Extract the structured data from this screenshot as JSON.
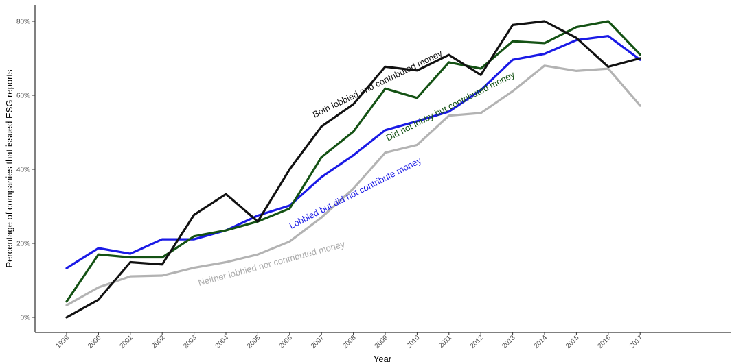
{
  "chart_data": {
    "type": "line",
    "title": "",
    "xlabel": "Year",
    "ylabel": "Percentage of companies that issued ESG reports",
    "x": [
      "1999",
      "2000",
      "2001",
      "2002",
      "2003",
      "2004",
      "2005",
      "2006",
      "2007",
      "2008",
      "2009",
      "2010",
      "2011",
      "2012",
      "2013",
      "2014",
      "2015",
      "2016",
      "2017"
    ],
    "y_ticks": [
      "0%",
      "20%",
      "40%",
      "60%",
      "80%"
    ],
    "ylim": [
      0,
      84
    ],
    "grid": false,
    "legend": "none (direct labels on lines)",
    "series": [
      {
        "name": "Both lobbied and contributed money",
        "color": "#111111",
        "values": [
          0.0,
          4.8,
          14.9,
          14.3,
          27.7,
          33.3,
          25.9,
          40.0,
          51.6,
          57.6,
          67.7,
          66.7,
          70.9,
          65.5,
          79.0,
          80.0,
          75.5,
          67.7,
          70.0
        ]
      },
      {
        "name": "Did not lobby but contributed money",
        "color": "#145214",
        "values": [
          4.3,
          17.0,
          16.2,
          16.2,
          21.9,
          23.5,
          25.9,
          29.4,
          43.3,
          50.2,
          61.8,
          59.3,
          68.9,
          67.2,
          74.6,
          74.1,
          78.4,
          80.0,
          71.0
        ]
      },
      {
        "name": "Lobbied but did not contribute money",
        "color": "#1a1ae6",
        "values": [
          13.3,
          18.7,
          17.2,
          21.1,
          21.1,
          23.5,
          27.5,
          30.2,
          37.9,
          43.8,
          50.6,
          53.0,
          55.6,
          61.4,
          69.6,
          71.2,
          74.9,
          76.0,
          69.6
        ]
      },
      {
        "name": "Neither lobbied nor contributed money",
        "color": "#b3b3b3",
        "values": [
          3.3,
          8.1,
          11.1,
          11.3,
          13.4,
          14.9,
          17.0,
          20.5,
          27.0,
          34.8,
          44.5,
          46.6,
          54.5,
          55.2,
          61.1,
          68.0,
          66.6,
          67.2,
          57.2
        ]
      }
    ]
  }
}
